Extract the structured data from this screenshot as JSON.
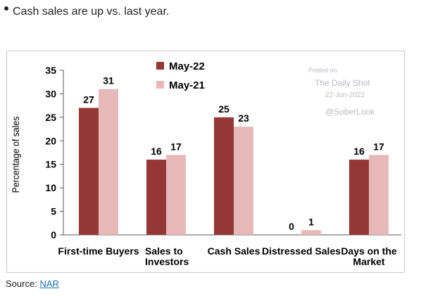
{
  "headline": "Cash sales are up vs. last year.",
  "source": {
    "label": "Source:",
    "link_text": "NAR"
  },
  "watermark": {
    "line1": "Posted on",
    "line2": "The Daily Shot",
    "line3": "22-Jun-2022",
    "line4": "@SoberLook"
  },
  "chart_data": {
    "type": "bar",
    "ylabel": "Percentage of sales",
    "ylim": [
      0,
      35
    ],
    "yticks": [
      0,
      5,
      10,
      15,
      20,
      25,
      30,
      35
    ],
    "categories": [
      [
        "First-time Buyers"
      ],
      [
        "Sales to",
        "Investors"
      ],
      [
        "Cash Sales"
      ],
      [
        "Distressed Sales"
      ],
      [
        "Days on the",
        "Market"
      ]
    ],
    "series": [
      {
        "name": "May-22",
        "color": "#953735",
        "values": [
          27,
          16,
          25,
          0,
          16
        ]
      },
      {
        "name": "May-21",
        "color": "#e6b9b8",
        "values": [
          31,
          17,
          23,
          1,
          17
        ]
      }
    ],
    "legend_position": "top-center",
    "grid": false
  }
}
